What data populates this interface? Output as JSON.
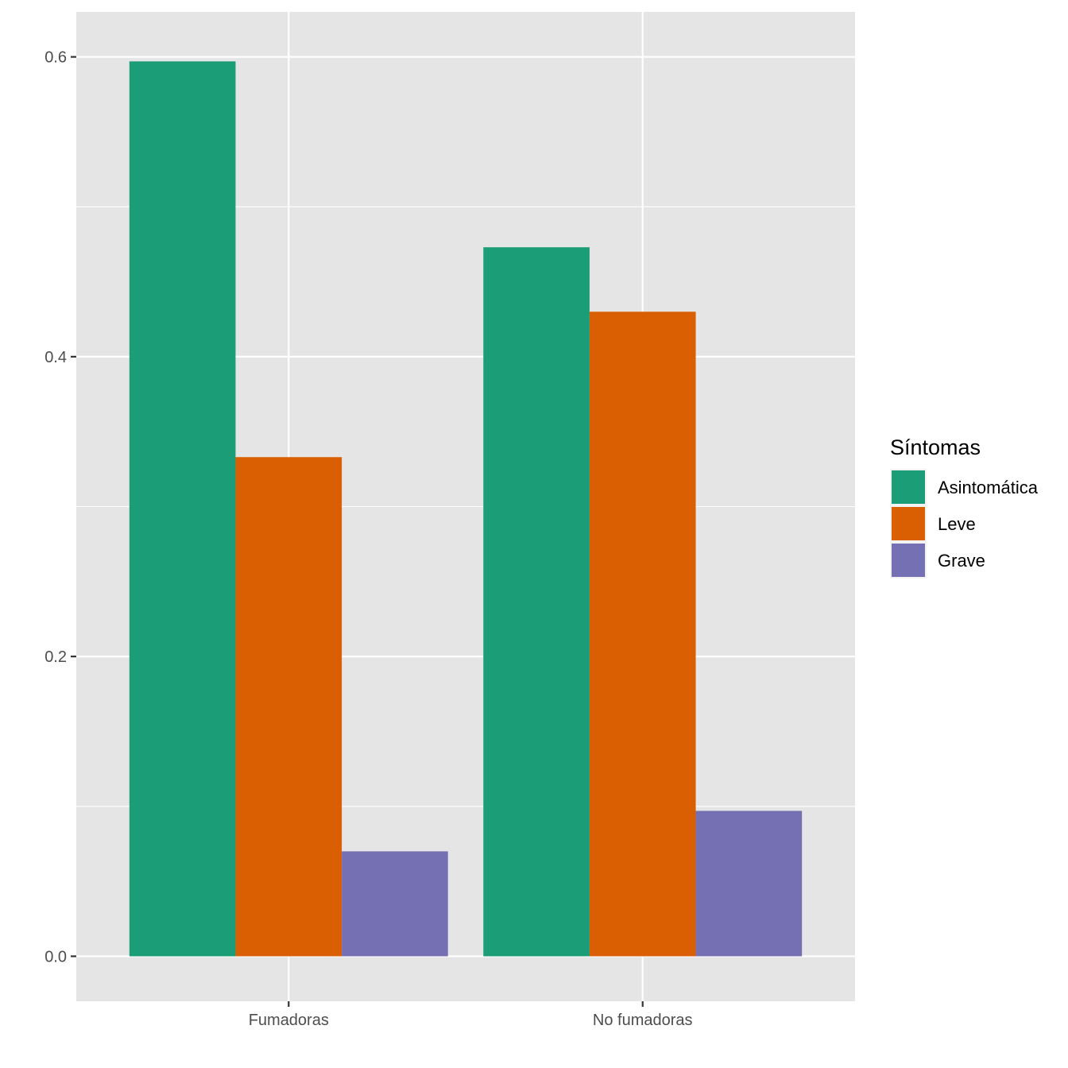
{
  "chart_data": {
    "type": "bar",
    "categories": [
      "Fumadoras",
      "No fumadoras"
    ],
    "series": [
      {
        "name": "Asintomática",
        "color": "#1B9E77",
        "values": [
          0.597,
          0.473
        ]
      },
      {
        "name": "Leve",
        "color": "#D95F02",
        "values": [
          0.333,
          0.43
        ]
      },
      {
        "name": "Grave",
        "color": "#7570B3",
        "values": [
          0.07,
          0.097
        ]
      }
    ],
    "ylim": [
      -0.03,
      0.63
    ],
    "yticks": [
      {
        "value": 0.0,
        "label": "0.0"
      },
      {
        "value": 0.2,
        "label": "0.2"
      },
      {
        "value": 0.4,
        "label": "0.4"
      },
      {
        "value": 0.6,
        "label": "0.6"
      }
    ],
    "yminor": [
      0.1,
      0.3,
      0.5
    ],
    "xlabel": "",
    "ylabel": "",
    "grid": true,
    "legend": {
      "title": "Síntomas",
      "position": "right"
    },
    "colors": {
      "panel": "#E5E5E5",
      "grid": "#FFFFFF",
      "tick": "#333333"
    }
  }
}
